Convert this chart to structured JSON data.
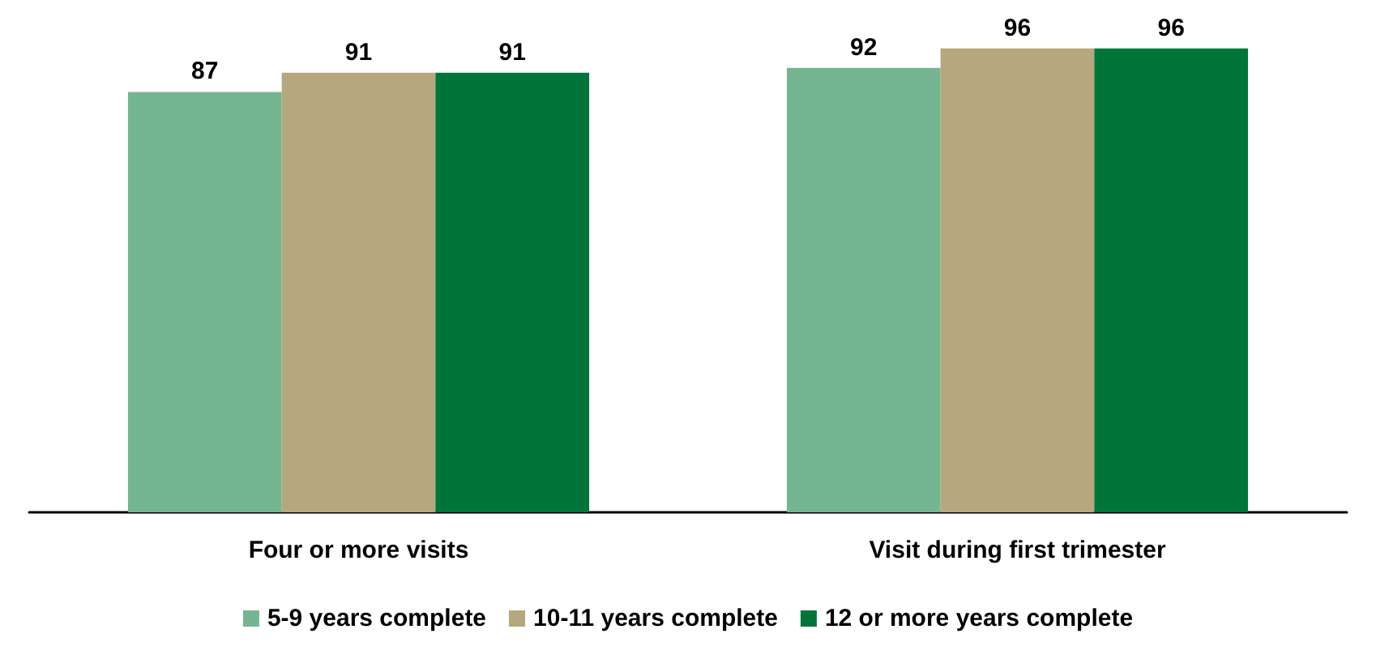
{
  "chart_data": {
    "type": "bar",
    "categories": [
      "Four or more visits",
      "Visit during first trimester"
    ],
    "series": [
      {
        "name": "5-9 years complete",
        "color": "#76b592",
        "values": [
          87,
          92
        ]
      },
      {
        "name": "10-11 years complete",
        "color": "#b5a77e",
        "values": [
          91,
          96
        ]
      },
      {
        "name": "12 or more years complete",
        "color": "#00753a",
        "values": [
          91,
          96
        ]
      }
    ],
    "data_labels": true,
    "legend": "bottom"
  }
}
